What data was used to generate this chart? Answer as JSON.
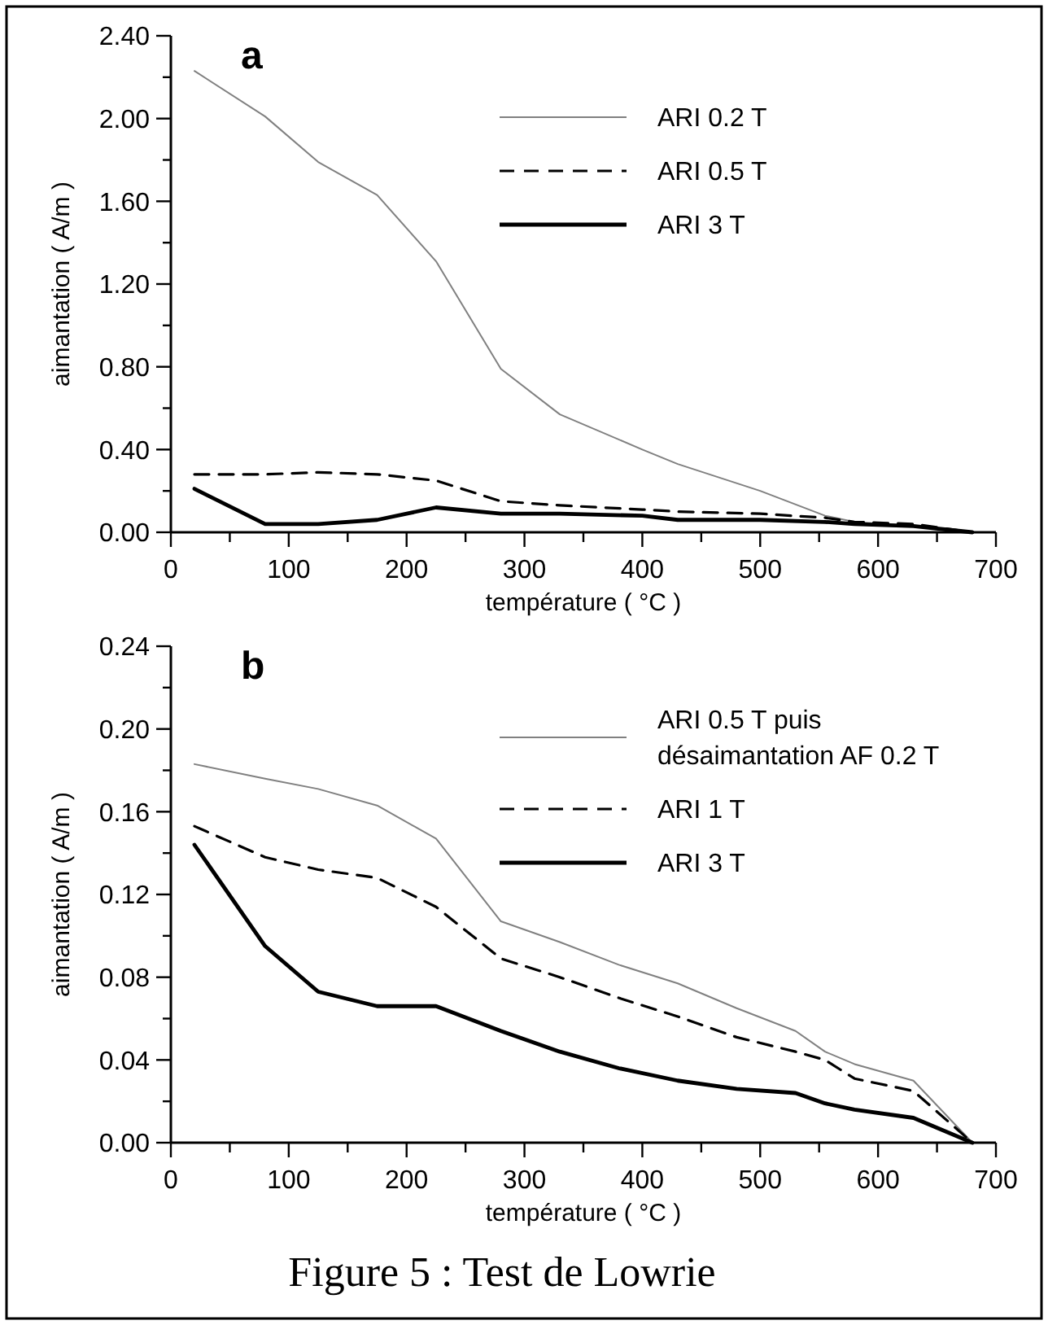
{
  "chart_data": [
    {
      "type": "line",
      "title": "a",
      "xlabel": "température ( °C )",
      "ylabel": "aimantation ( A/m )",
      "xlim": [
        0,
        700
      ],
      "ylim": [
        0,
        2.4
      ],
      "xticks": [
        0,
        {
          "value": 50,
          "label": null
        },
        100,
        {
          "value": 150,
          "label": null
        },
        200,
        {
          "value": 250,
          "label": null
        },
        300,
        {
          "value": 350,
          "label": null
        },
        400,
        {
          "value": 450,
          "label": null
        },
        500,
        {
          "value": 550,
          "label": null
        },
        600,
        {
          "value": 650,
          "label": null
        },
        700
      ],
      "yticks": [
        {
          "value": 0,
          "label": "0.00"
        },
        {
          "value": 0.2,
          "label": null
        },
        {
          "value": 0.4,
          "label": "0.40"
        },
        {
          "value": 0.6,
          "label": null
        },
        {
          "value": 0.8,
          "label": "0.80"
        },
        {
          "value": 1.0,
          "label": null
        },
        {
          "value": 1.2,
          "label": "1.20"
        },
        {
          "value": 1.4,
          "label": null
        },
        {
          "value": 1.6,
          "label": "1.60"
        },
        {
          "value": 1.8,
          "label": null
        },
        {
          "value": 2.0,
          "label": "2.00"
        },
        {
          "value": 2.2,
          "label": null
        },
        {
          "value": 2.4,
          "label": "2.40"
        }
      ],
      "grid": false,
      "legend": "top right",
      "marker": "none",
      "x": [
        20,
        80,
        125,
        175,
        225,
        280,
        330,
        400,
        430,
        500,
        555,
        580,
        630,
        680
      ],
      "series": [
        {
          "name": "ARI 0.2 T",
          "color": "#808080",
          "line_style": "solid",
          "values": [
            2.23,
            2.01,
            1.79,
            1.63,
            1.31,
            0.79,
            0.57,
            0.4,
            0.33,
            0.2,
            0.08,
            0.05,
            0.03,
            0.0
          ]
        },
        {
          "name": "ARI 0.5 T",
          "color": "#000000",
          "line_style": "dashed",
          "values": [
            0.28,
            0.28,
            0.29,
            0.28,
            0.25,
            0.15,
            0.13,
            0.11,
            0.1,
            0.09,
            0.07,
            0.05,
            0.04,
            0.0
          ]
        },
        {
          "name": "ARI 3 T",
          "color": "#000000",
          "line_style": "solid",
          "values": [
            0.21,
            0.04,
            0.04,
            0.06,
            0.12,
            0.09,
            0.09,
            0.08,
            0.06,
            0.06,
            0.05,
            0.04,
            0.03,
            0.0
          ]
        }
      ]
    },
    {
      "type": "line",
      "title": "b",
      "xlabel": "température ( °C )",
      "ylabel": "aimantation ( A/m )",
      "xlim": [
        0,
        700
      ],
      "ylim": [
        0,
        0.24
      ],
      "xticks": [
        0,
        {
          "value": 50,
          "label": null
        },
        100,
        {
          "value": 150,
          "label": null
        },
        200,
        {
          "value": 250,
          "label": null
        },
        300,
        {
          "value": 350,
          "label": null
        },
        400,
        {
          "value": 450,
          "label": null
        },
        500,
        {
          "value": 550,
          "label": null
        },
        600,
        {
          "value": 650,
          "label": null
        },
        700
      ],
      "yticks": [
        {
          "value": 0,
          "label": "0.00"
        },
        {
          "value": 0.02,
          "label": null
        },
        {
          "value": 0.04,
          "label": "0.04"
        },
        {
          "value": 0.06,
          "label": null
        },
        {
          "value": 0.08,
          "label": "0.08"
        },
        {
          "value": 0.1,
          "label": null
        },
        {
          "value": 0.12,
          "label": "0.12"
        },
        {
          "value": 0.14,
          "label": null
        },
        {
          "value": 0.16,
          "label": "0.16"
        },
        {
          "value": 0.18,
          "label": null
        },
        {
          "value": 0.2,
          "label": "0.20"
        },
        {
          "value": 0.22,
          "label": null
        },
        {
          "value": 0.24,
          "label": "0.24"
        }
      ],
      "grid": false,
      "legend": "top right",
      "marker": "none",
      "x": [
        20,
        80,
        125,
        175,
        225,
        280,
        330,
        380,
        430,
        480,
        530,
        555,
        580,
        630,
        680
      ],
      "series": [
        {
          "name": "ARI 0.5 T puis désaimantation AF 0.2 T",
          "color": "#808080",
          "line_style": "solid",
          "values": [
            0.183,
            0.176,
            0.171,
            0.163,
            0.147,
            0.107,
            0.097,
            0.086,
            0.077,
            0.065,
            0.054,
            0.044,
            0.038,
            0.03,
            0.0
          ]
        },
        {
          "name": "ARI 1 T",
          "color": "#000000",
          "line_style": "dashed",
          "values": [
            0.153,
            0.138,
            0.132,
            0.128,
            0.114,
            0.089,
            0.08,
            0.07,
            0.061,
            0.051,
            0.044,
            0.04,
            0.031,
            0.025,
            0.0
          ]
        },
        {
          "name": "ARI 3 T",
          "color": "#000000",
          "line_style": "solid",
          "values": [
            0.144,
            0.095,
            0.073,
            0.066,
            0.066,
            0.054,
            0.044,
            0.036,
            0.03,
            0.026,
            0.024,
            0.019,
            0.016,
            0.012,
            0.0
          ]
        }
      ],
      "annotations": [
        "Figure 5 : Test de Lowrie"
      ]
    }
  ]
}
